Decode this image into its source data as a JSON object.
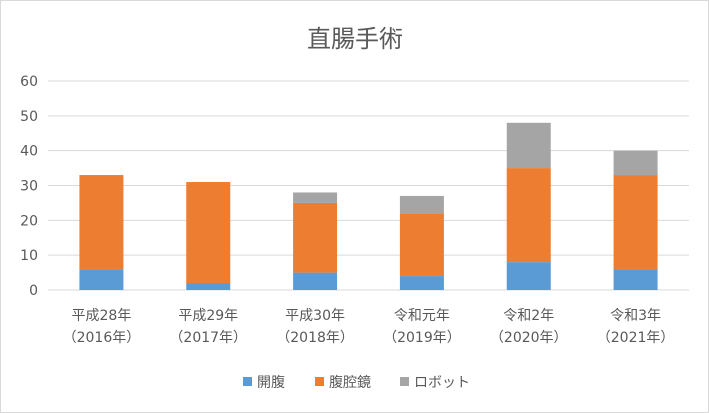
{
  "chart_data": {
    "type": "bar",
    "stacked": true,
    "title": "直腸手術",
    "xlabel": "",
    "ylabel": "",
    "ylim": [
      0,
      60
    ],
    "yticks": [
      0,
      10,
      20,
      30,
      40,
      50,
      60
    ],
    "grid": true,
    "legend_position": "bottom",
    "categories": [
      [
        "平成28年",
        "（2016年）"
      ],
      [
        "平成29年",
        "（2017年）"
      ],
      [
        "平成30年",
        "（2018年）"
      ],
      [
        "令和元年",
        "（2019年）"
      ],
      [
        "令和2年",
        "（2020年）"
      ],
      [
        "令和3年",
        "（2021年）"
      ]
    ],
    "series": [
      {
        "name": "開腹",
        "color": "#5b9bd5",
        "values": [
          6,
          2,
          5,
          4,
          8,
          6
        ]
      },
      {
        "name": "腹腔鏡",
        "color": "#ed7d31",
        "values": [
          27,
          29,
          20,
          18,
          27,
          27
        ]
      },
      {
        "name": "ロボット",
        "color": "#a5a5a5",
        "values": [
          0,
          0,
          3,
          5,
          13,
          7
        ]
      }
    ]
  }
}
